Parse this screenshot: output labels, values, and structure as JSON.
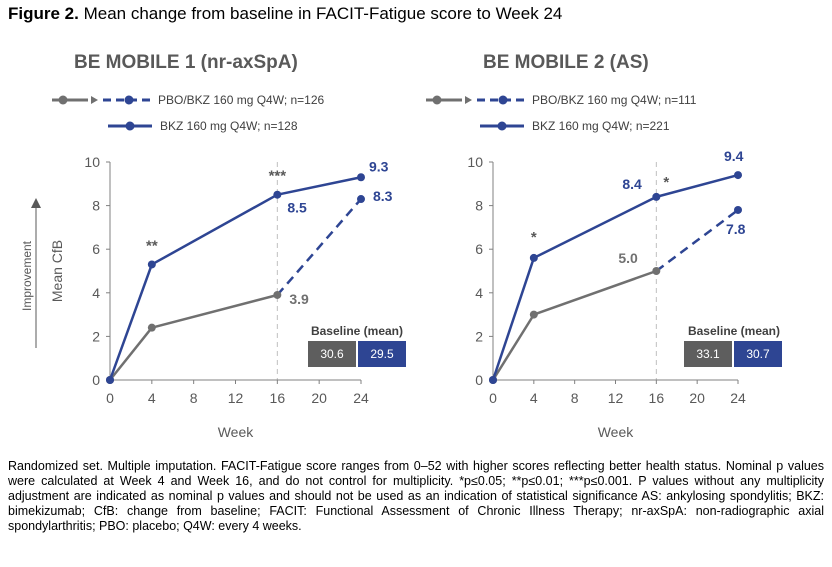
{
  "figure": {
    "label": "Figure 2.",
    "title": " Mean change from baseline in FACIT-Fatigue score to Week 24"
  },
  "colors": {
    "bkz": "#2e4593",
    "pbo": "#707070",
    "grid": "#bfbfbf",
    "baseline_pbo": "#5e5e5e",
    "baseline_bkz": "#2e4593"
  },
  "axis": {
    "ylabel": "Mean CfB",
    "xlabel": "Week",
    "improvement": "Improvement"
  },
  "legend": {
    "pbo": "PBO/BKZ 160 mg Q4W; n={n}",
    "bkz": "BKZ 160 mg Q4W; n={n}"
  },
  "panels": [
    {
      "title": "BE MOBILE 1 (nr-axSpA)",
      "legend_pbo": "PBO/BKZ 160 mg Q4W; n=126",
      "legend_bkz": "BKZ 160 mg Q4W; n=128",
      "baseline": {
        "title": "Baseline (mean)",
        "pbo": "30.6",
        "bkz": "29.5"
      }
    },
    {
      "title": "BE MOBILE 2 (AS)",
      "legend_pbo": "PBO/BKZ 160 mg Q4W; n=111",
      "legend_bkz": "BKZ 160 mg Q4W; n=221",
      "baseline": {
        "title": "Baseline (mean)",
        "pbo": "33.1",
        "bkz": "30.7"
      }
    }
  ],
  "chart_data": [
    {
      "type": "line",
      "title": "BE MOBILE 1 (nr-axSpA)",
      "xlabel": "Week",
      "ylabel": "Mean CfB",
      "xlim": [
        0,
        24
      ],
      "ylim": [
        0,
        10
      ],
      "xticks": [
        0,
        4,
        8,
        12,
        16,
        20,
        24
      ],
      "yticks": [
        0,
        2,
        4,
        6,
        8,
        10
      ],
      "grid": false,
      "reference_line_x": 16,
      "series": [
        {
          "name": "PBO/BKZ 160 mg Q4W; n=126",
          "x": [
            0,
            4,
            16,
            24
          ],
          "y": [
            0,
            2.4,
            3.9,
            8.3
          ],
          "dashed_from_x": 16,
          "labels": [
            {
              "x": 16,
              "y": 3.9,
              "text": "3.9"
            },
            {
              "x": 24,
              "y": 8.3,
              "text": "8.3"
            }
          ]
        },
        {
          "name": "BKZ 160 mg Q4W; n=128",
          "x": [
            0,
            4,
            16,
            24
          ],
          "y": [
            0,
            5.3,
            8.5,
            9.3
          ],
          "labels": [
            {
              "x": 16,
              "y": 8.5,
              "text": "8.5"
            },
            {
              "x": 24,
              "y": 9.3,
              "text": "9.3"
            }
          ]
        }
      ],
      "significance": [
        {
          "x": 4,
          "text": "**"
        },
        {
          "x": 16,
          "text": "***"
        }
      ]
    },
    {
      "type": "line",
      "title": "BE MOBILE 2 (AS)",
      "xlabel": "Week",
      "ylabel": "",
      "xlim": [
        0,
        24
      ],
      "ylim": [
        0,
        10
      ],
      "xticks": [
        0,
        4,
        8,
        12,
        16,
        20,
        24
      ],
      "yticks": [
        0,
        2,
        4,
        6,
        8,
        10
      ],
      "grid": false,
      "reference_line_x": 16,
      "series": [
        {
          "name": "PBO/BKZ 160 mg Q4W; n=111",
          "x": [
            0,
            4,
            16,
            24
          ],
          "y": [
            0,
            3.0,
            5.0,
            7.8
          ],
          "dashed_from_x": 16,
          "labels": [
            {
              "x": 16,
              "y": 5.0,
              "text": "5.0"
            },
            {
              "x": 24,
              "y": 7.8,
              "text": "7.8"
            }
          ]
        },
        {
          "name": "BKZ 160 mg Q4W; n=221",
          "x": [
            0,
            4,
            16,
            24
          ],
          "y": [
            0,
            5.6,
            8.4,
            9.4
          ],
          "labels": [
            {
              "x": 16,
              "y": 8.4,
              "text": "8.4"
            },
            {
              "x": 24,
              "y": 9.4,
              "text": "9.4"
            }
          ]
        }
      ],
      "significance": [
        {
          "x": 4,
          "text": "*"
        },
        {
          "x": 16,
          "text": "*"
        }
      ]
    }
  ],
  "footnote": "Randomized set. Multiple imputation. FACIT-Fatigue score ranges from 0–52 with higher scores reflecting better health status. Nominal p values were calculated at Week 4 and Week 16, and do not control for multiplicity. *p≤0.05; **p≤0.01; ***p≤0.001. P values without any multiplicity adjustment are indicated as nominal p values and should not be used as an indication of statistical significance AS: ankylosing spondylitis; BKZ: bimekizumab; CfB: change from baseline; FACIT: Functional Assessment of Chronic Illness Therapy; nr-axSpA: non-radiographic axial spondylarthritis; PBO: placebo; Q4W: every 4 weeks."
}
